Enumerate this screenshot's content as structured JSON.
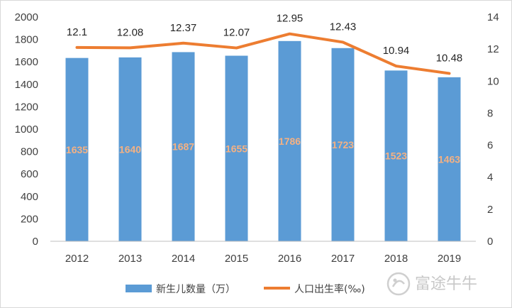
{
  "chart_data": {
    "type": "bar",
    "categories": [
      "2012",
      "2013",
      "2014",
      "2015",
      "2016",
      "2017",
      "2018",
      "2019"
    ],
    "series": [
      {
        "name": "新生儿数量（万）",
        "type": "bar",
        "axis": "left",
        "color": "#5b9bd5",
        "label_color": "#f4b183",
        "values": [
          1635,
          1640,
          1687,
          1655,
          1786,
          1723,
          1523,
          1463
        ],
        "labels": [
          "1635",
          "1640",
          "1687",
          "1655",
          "1786",
          "1723",
          "1523",
          "1463"
        ]
      },
      {
        "name": "人口出生率(‰)",
        "type": "line",
        "axis": "right",
        "color": "#ed7d31",
        "values": [
          12.1,
          12.08,
          12.37,
          12.07,
          12.95,
          12.43,
          10.94,
          10.48
        ],
        "labels": [
          "12.1",
          "12.08",
          "12.37",
          "12.07",
          "12.95",
          "12.43",
          "10.94",
          "10.48"
        ]
      }
    ],
    "y_left": {
      "range": [
        0,
        2000
      ],
      "ticks": [
        "0",
        "200",
        "400",
        "600",
        "800",
        "1000",
        "1200",
        "1400",
        "1600",
        "1800",
        "2000"
      ]
    },
    "y_right": {
      "range": [
        0,
        14
      ],
      "ticks": [
        "0",
        "2",
        "4",
        "6",
        "8",
        "10",
        "12",
        "14"
      ]
    },
    "grid": false,
    "legend": "bottom",
    "watermark": "富途牛牛"
  }
}
